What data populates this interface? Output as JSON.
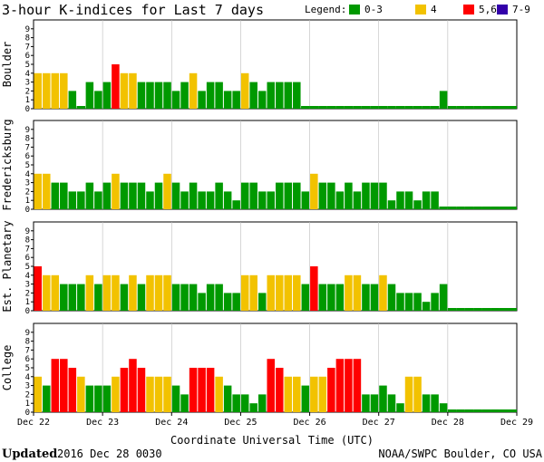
{
  "title": "3-hour K-indices for Last 7 days",
  "legend": {
    "label": "Legend:",
    "items": [
      {
        "label": "0-3",
        "color": "#009900"
      },
      {
        "label": "4",
        "color": "#f2c200"
      },
      {
        "label": "5,6",
        "color": "#ff0000"
      },
      {
        "label": "7-9",
        "color": "#3300aa"
      }
    ]
  },
  "xlabel": "Coordinate Universal Time (UTC)",
  "footer": {
    "updated_label": "Updated",
    "updated_value": "2016 Dec 28 0030",
    "source": "NOAA/SWPC Boulder, CO USA"
  },
  "chart_data": [
    {
      "type": "bar",
      "station": "Boulder",
      "ylim": [
        0,
        9
      ],
      "yticks": [
        "0",
        "1",
        "2",
        "3",
        "4",
        "5",
        "6",
        "7",
        "8",
        "9"
      ],
      "xticks": [
        "Dec 22",
        "Dec 23",
        "Dec 24",
        "Dec 25",
        "Dec 26",
        "Dec 27",
        "Dec 28",
        "Dec 29"
      ],
      "values": [
        4,
        4,
        4,
        4,
        2,
        0,
        3,
        2,
        3,
        5,
        4,
        4,
        3,
        3,
        3,
        3,
        2,
        3,
        4,
        2,
        3,
        3,
        2,
        2,
        4,
        3,
        2,
        3,
        3,
        3,
        3,
        0,
        0,
        0,
        0,
        0,
        0,
        0,
        0,
        0,
        0,
        0,
        0,
        0,
        0,
        0,
        0,
        2,
        0,
        0,
        0,
        0,
        0,
        0,
        0,
        0
      ]
    },
    {
      "type": "bar",
      "station": "Fredericksburg",
      "ylim": [
        0,
        9
      ],
      "yticks": [
        "0",
        "1",
        "2",
        "3",
        "4",
        "5",
        "6",
        "7",
        "8",
        "9"
      ],
      "xticks": [
        "Dec 22",
        "Dec 23",
        "Dec 24",
        "Dec 25",
        "Dec 26",
        "Dec 27",
        "Dec 28",
        "Dec 29"
      ],
      "values": [
        4,
        4,
        3,
        3,
        2,
        2,
        3,
        2,
        3,
        4,
        3,
        3,
        3,
        2,
        3,
        4,
        3,
        2,
        3,
        2,
        2,
        3,
        2,
        1,
        3,
        3,
        2,
        2,
        3,
        3,
        3,
        2,
        4,
        3,
        3,
        2,
        3,
        2,
        3,
        3,
        3,
        1,
        2,
        2,
        1,
        2,
        2,
        0,
        0,
        0,
        0,
        0,
        0,
        0,
        0,
        0
      ]
    },
    {
      "type": "bar",
      "station": "Est. Planetary",
      "ylim": [
        0,
        9
      ],
      "yticks": [
        "0",
        "1",
        "2",
        "3",
        "4",
        "5",
        "6",
        "7",
        "8",
        "9"
      ],
      "xticks": [
        "Dec 22",
        "Dec 23",
        "Dec 24",
        "Dec 25",
        "Dec 26",
        "Dec 27",
        "Dec 28",
        "Dec 29"
      ],
      "values": [
        5,
        4,
        4,
        3,
        3,
        3,
        4,
        3,
        4,
        4,
        3,
        4,
        3,
        4,
        4,
        4,
        3,
        3,
        3,
        2,
        3,
        3,
        2,
        2,
        4,
        4,
        2,
        4,
        4,
        4,
        4,
        3,
        5,
        3,
        3,
        3,
        4,
        4,
        3,
        3,
        4,
        3,
        2,
        2,
        2,
        1,
        2,
        3,
        0,
        0,
        0,
        0,
        0,
        0,
        0,
        0
      ]
    },
    {
      "type": "bar",
      "station": "College",
      "ylim": [
        0,
        9
      ],
      "yticks": [
        "0",
        "1",
        "2",
        "3",
        "4",
        "5",
        "6",
        "7",
        "8",
        "9"
      ],
      "xticks": [
        "Dec 22",
        "Dec 23",
        "Dec 24",
        "Dec 25",
        "Dec 26",
        "Dec 27",
        "Dec 28",
        "Dec 29"
      ],
      "values": [
        4,
        3,
        6,
        6,
        5,
        4,
        3,
        3,
        3,
        4,
        5,
        6,
        5,
        4,
        4,
        4,
        3,
        2,
        5,
        5,
        5,
        4,
        3,
        2,
        2,
        1,
        2,
        6,
        5,
        4,
        4,
        3,
        4,
        4,
        5,
        6,
        6,
        6,
        2,
        2,
        3,
        2,
        1,
        4,
        4,
        2,
        2,
        1,
        0,
        0,
        0,
        0,
        0,
        0,
        0,
        0
      ]
    }
  ]
}
